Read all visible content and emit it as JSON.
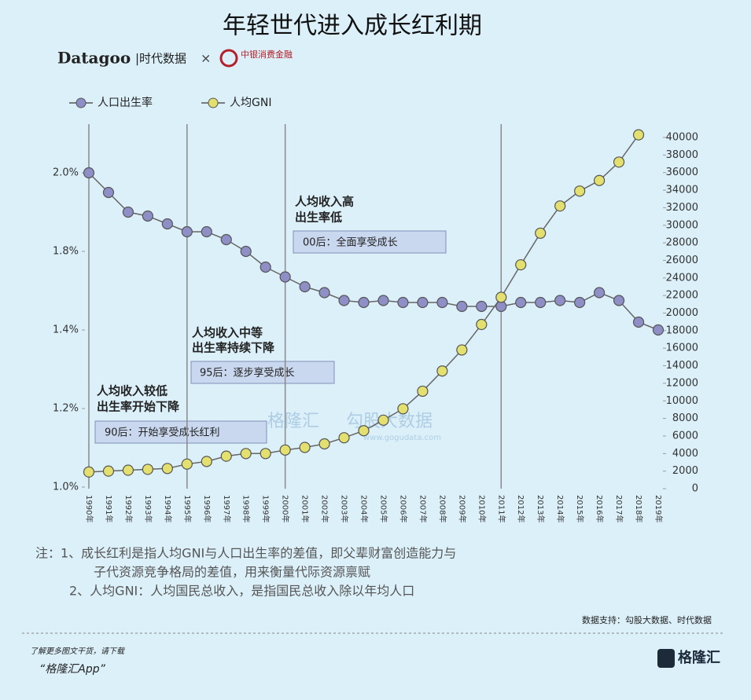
{
  "header": {
    "title": "年轻世代进入成长红利期",
    "brand": "Datagoo",
    "brand_cn": "|时代数据",
    "times": "×",
    "partner": "中银消费金融"
  },
  "chart_data": {
    "type": "line",
    "categories": [
      "1990年",
      "1991年",
      "1992年",
      "1993年",
      "1994年",
      "1995年",
      "1996年",
      "1997年",
      "1998年",
      "1999年",
      "2000年",
      "2001年",
      "2002年",
      "2003年",
      "2004年",
      "2005年",
      "2006年",
      "2007年",
      "2008年",
      "2009年",
      "2010年",
      "2011年",
      "2012年",
      "2013年",
      "2014年",
      "2015年",
      "2016年",
      "2017年",
      "2018年",
      "2019年"
    ],
    "series": [
      {
        "name": "人口出生率",
        "color": "#8e8fc6",
        "values": [
          2.0,
          1.95,
          1.9,
          1.89,
          1.87,
          1.85,
          1.85,
          1.83,
          1.8,
          1.72,
          1.67,
          1.62,
          1.59,
          1.55,
          1.54,
          1.55,
          1.54,
          1.54,
          1.54,
          1.52,
          1.52,
          1.52,
          1.54,
          1.54,
          1.55,
          1.54,
          1.59,
          1.55,
          1.44,
          1.4
        ]
      },
      {
        "name": "人均GNI",
        "color": "#e3e070",
        "axis": "y2",
        "values": [
          1900,
          2000,
          2100,
          2200,
          2300,
          2800,
          3100,
          3700,
          4000,
          4000,
          4400,
          4700,
          5100,
          5800,
          6600,
          7800,
          9100,
          11100,
          13400,
          15800,
          18700,
          21800,
          25500,
          29100,
          32200,
          33900,
          35100,
          37200,
          40300,
          null
        ]
      }
    ],
    "ylim": [
      1.0,
      2.0
    ],
    "yticks": [
      {
        "value": 2.0,
        "label": "2.0%"
      },
      {
        "value": 1.8,
        "label": "1.8%"
      },
      {
        "value": 1.4,
        "label": "1.4%"
      },
      {
        "value": 1.2,
        "label": "1.2%"
      },
      {
        "value": 1.0,
        "label": "1.0%"
      }
    ],
    "y2lim": [
      0,
      40000
    ],
    "y2ticks": [
      0,
      2000,
      4000,
      6000,
      8000,
      10000,
      12000,
      14000,
      16000,
      18000,
      20000,
      22000,
      24000,
      26000,
      28000,
      30000,
      32000,
      34000,
      36000,
      38000,
      40000
    ],
    "annotations": [
      {
        "lines": [
          "人均收入高",
          "出生率低"
        ],
        "box": "00后：全面享受成长"
      },
      {
        "lines": [
          "人均收入中等",
          "出生率持续下降"
        ],
        "box": "95后：逐步享受成长"
      },
      {
        "lines": [
          "人均收入较低",
          "出生率开始下降"
        ],
        "box": "90后：开始享受成长红利"
      }
    ],
    "watermark": [
      "格隆汇",
      "勾股大数据",
      "www.gogudata.com"
    ]
  },
  "notes": [
    "注：1、成长红利是指人均GNI与人口出生率的差值，即父辈财富创造能力与",
    "子代资源竞争格局的差值，用来衡量代际资源禀赋",
    "2、人均GNI：人均国民总收入，是指国民总收入除以年均人口"
  ],
  "source": "数据支持：勾股大数据、时代数据",
  "footer": {
    "line1": "了解更多图文干货，请下载",
    "line2": "“格隆汇App”",
    "logo": "格隆汇"
  }
}
